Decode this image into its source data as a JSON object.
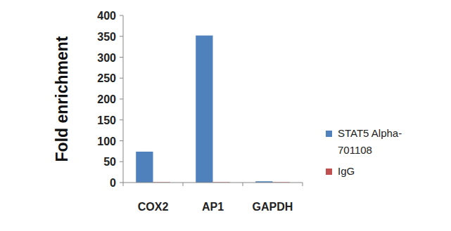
{
  "chart_data": {
    "type": "bar",
    "y_label": "Fold enrichment",
    "categories": [
      "COX2",
      "AP1",
      "GAPDH"
    ],
    "series": [
      {
        "name": "STAT5 Alpha-701108",
        "color": "#4f81bd",
        "values": [
          74,
          352,
          3
        ]
      },
      {
        "name": "IgG",
        "color": "#c0504d",
        "values": [
          1,
          1,
          1
        ]
      }
    ],
    "ylim": [
      0,
      400
    ],
    "yticks": [
      0,
      50,
      100,
      150,
      200,
      250,
      300,
      350,
      400
    ],
    "grid": false,
    "legend": "right"
  }
}
